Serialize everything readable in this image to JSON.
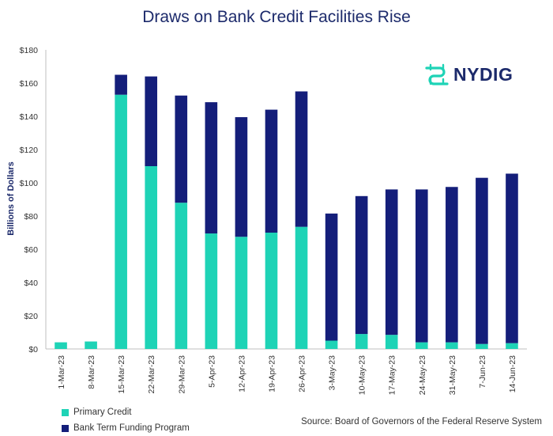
{
  "chart_data": {
    "type": "bar",
    "stacked": true,
    "title": "Draws on Bank Credit Facilities Rise",
    "ylabel": "Billions of Dollars",
    "ylim": [
      0,
      180
    ],
    "yticks": [
      "$0",
      "$20",
      "$40",
      "$60",
      "$80",
      "$100",
      "$120",
      "$140",
      "$160",
      "$180"
    ],
    "categories": [
      "1-Mar-23",
      "8-Mar-23",
      "15-Mar-23",
      "22-Mar-23",
      "29-Mar-23",
      "5-Apr-23",
      "12-Apr-23",
      "19-Apr-23",
      "26-Apr-23",
      "3-May-23",
      "10-May-23",
      "17-May-23",
      "24-May-23",
      "31-May-23",
      "7-Jun-23",
      "14-Jun-23"
    ],
    "series": [
      {
        "name": "Primary Credit",
        "color": "#1ed3b6",
        "values": [
          4,
          4.5,
          153,
          110,
          88,
          69.5,
          67.5,
          70,
          73.5,
          5,
          9,
          8.5,
          4,
          4,
          3,
          3.5
        ]
      },
      {
        "name": "Bank Term Funding Program",
        "color": "#141e7a",
        "values": [
          0,
          0,
          12,
          54,
          64.5,
          79,
          72,
          74,
          81.5,
          76.5,
          83,
          87.5,
          92,
          93.5,
          100,
          102
        ]
      }
    ],
    "grid": false,
    "legend": "bottom-left"
  },
  "source": "Source: Board of Governors of the Federal Reserve System",
  "logo": {
    "text": "NYDIG",
    "icon": "nydig-logo-icon",
    "icon_color": "#1ed3b6",
    "text_color": "#1c2a6b"
  }
}
